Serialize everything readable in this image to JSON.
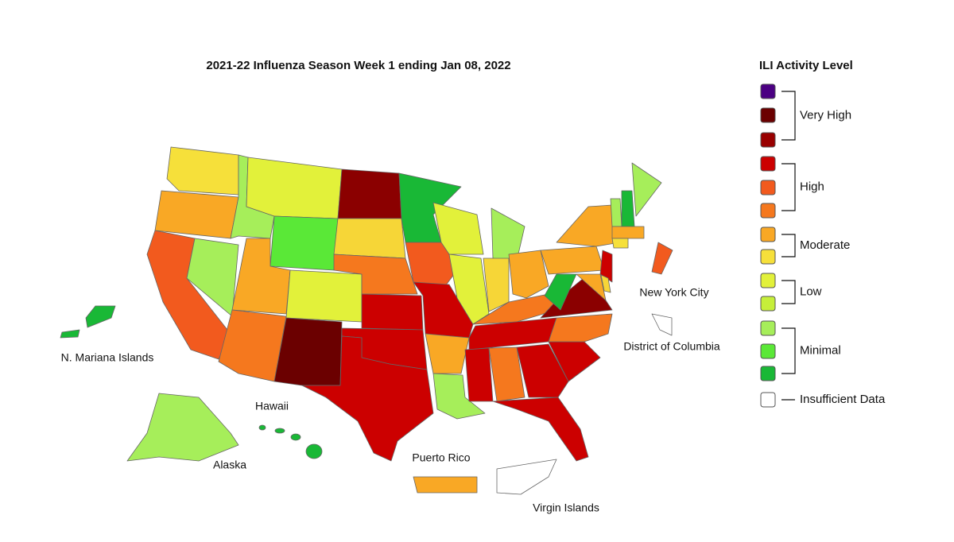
{
  "title": "2021-22 Influenza Season Week 1 ending Jan 08, 2022",
  "map": {
    "labels": [
      "N. Mariana Islands",
      "Hawaii",
      "Alaska",
      "Puerto Rico",
      "Virgin Islands",
      "New York City",
      "District of Columbia"
    ]
  },
  "legend": {
    "title": "ILI Activity Level",
    "levels": [
      {
        "color": "#4b0082"
      },
      {
        "color": "#6b0000"
      },
      {
        "color": "#990000"
      },
      {
        "color": "#cc0000"
      },
      {
        "color": "#f25a1e"
      },
      {
        "color": "#f5781e"
      },
      {
        "color": "#f9a825"
      },
      {
        "color": "#f6e03a"
      },
      {
        "color": "#e2f13a"
      },
      {
        "color": "#c6ef3a"
      },
      {
        "color": "#a6ee5a"
      },
      {
        "color": "#5ae837"
      },
      {
        "color": "#19b836"
      },
      {
        "color": "#ffffff"
      }
    ],
    "groups": [
      "Very High",
      "High",
      "Moderate",
      "Low",
      "Minimal",
      "Insufficient Data"
    ]
  }
}
